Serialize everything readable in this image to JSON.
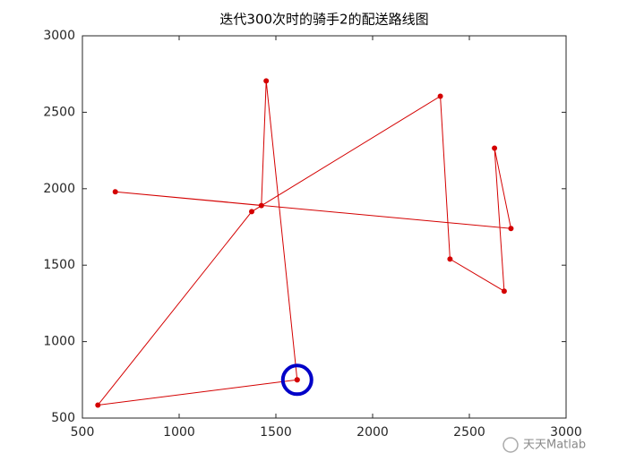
{
  "chart_data": {
    "type": "line",
    "title": "迭代300次时的骑手2的配送路线图",
    "series": [
      {
        "color": "#d40000",
        "x": [
          1610,
          580,
          1375,
          2350,
          2400,
          2680,
          2630,
          2715,
          670,
          1425,
          1450,
          1610
        ],
        "values": [
          750,
          585,
          1850,
          2605,
          1540,
          1330,
          2265,
          1740,
          1980,
          1890,
          2705,
          750
        ]
      }
    ],
    "start_marker_color": "#0000c8",
    "xlim": [
      500,
      3000
    ],
    "xticks": [
      500,
      1000,
      1500,
      2000,
      2500,
      3000
    ],
    "ylim": [
      500,
      3000
    ],
    "yticks": [
      500,
      1000,
      1500,
      2000,
      2500,
      3000
    ]
  },
  "watermark": "天天Matlab"
}
